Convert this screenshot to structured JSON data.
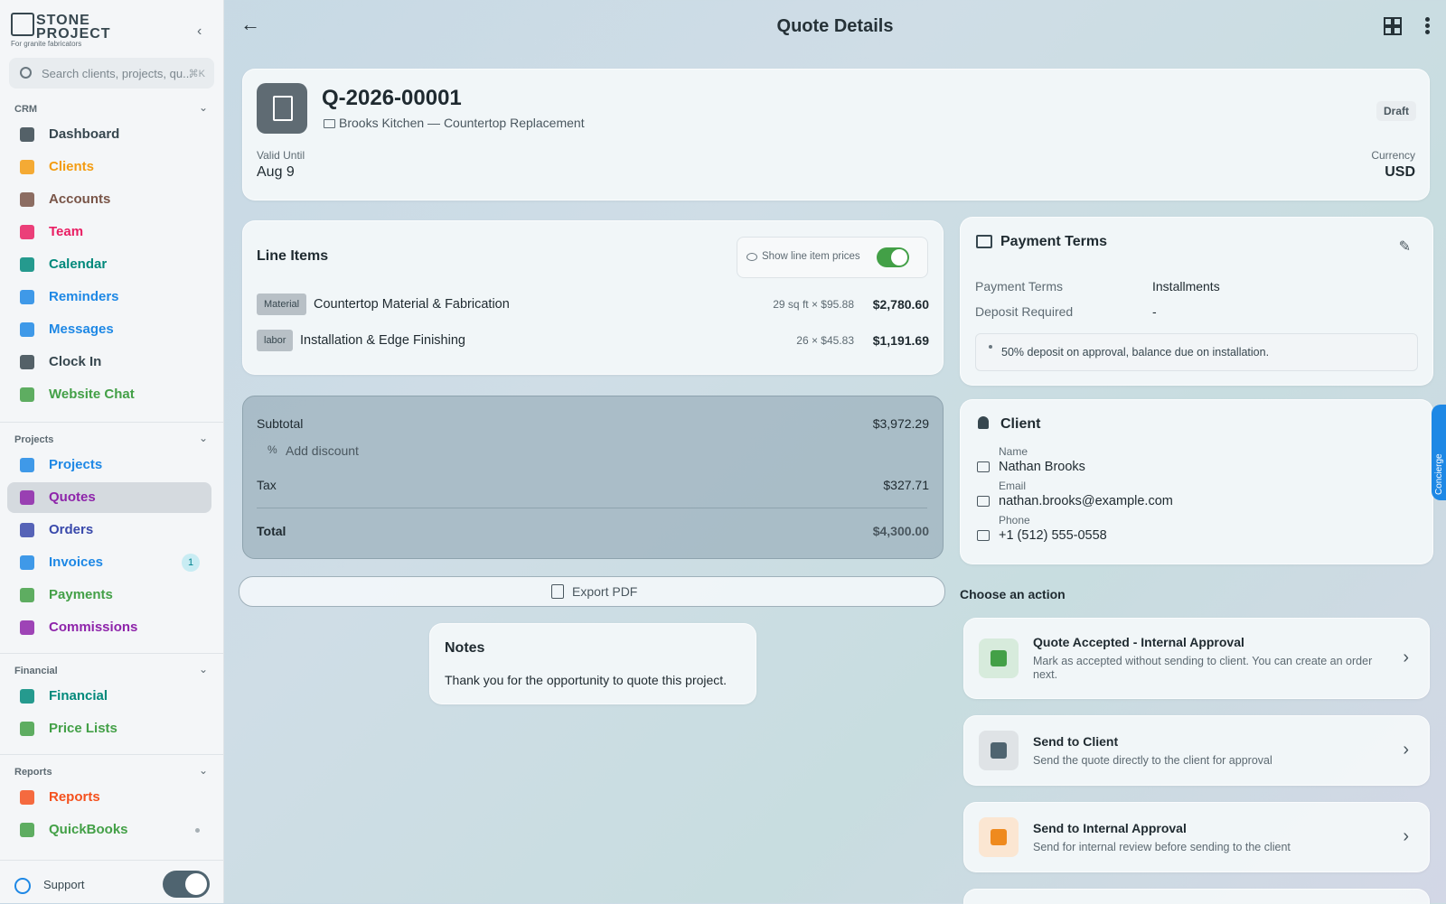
{
  "sidebar": {
    "logo": {
      "line1": "STONE",
      "line2": "PROJECT",
      "tagline": "For granite fabricators"
    },
    "search_placeholder": "Search clients, projects, qu...",
    "search_shortcut": "⌘K",
    "sections": [
      {
        "title": "CRM",
        "items": [
          {
            "label": "Dashboard"
          },
          {
            "label": "Clients"
          },
          {
            "label": "Accounts"
          },
          {
            "label": "Team"
          },
          {
            "label": "Calendar"
          },
          {
            "label": "Reminders"
          },
          {
            "label": "Messages"
          },
          {
            "label": "Clock In"
          },
          {
            "label": "Website Chat"
          }
        ]
      },
      {
        "title": "Projects",
        "items": [
          {
            "label": "Projects"
          },
          {
            "label": "Quotes"
          },
          {
            "label": "Orders"
          },
          {
            "label": "Invoices",
            "badge": 1
          },
          {
            "label": "Payments"
          },
          {
            "label": "Commissions"
          }
        ]
      },
      {
        "title": "Financial",
        "items": [
          {
            "label": "Financial"
          },
          {
            "label": "Price Lists"
          }
        ]
      },
      {
        "title": "Reports",
        "items": [
          {
            "label": "Reports"
          },
          {
            "label": "QuickBooks"
          }
        ]
      }
    ],
    "support": "Support"
  },
  "header": {
    "title": "Quote Details"
  },
  "quote": {
    "number": "Q-2026-00001",
    "project": "Brooks Kitchen — Countertop Replacement",
    "status": "Draft",
    "valid_until_label": "Valid Until",
    "valid_until": "Aug 9",
    "currency_label": "Currency",
    "currency": "USD"
  },
  "line_items": {
    "title": "Line Items",
    "toggle_label": "Show line item prices",
    "items": [
      {
        "category": "Material",
        "name": "Countertop Material & Fabrication",
        "qty": "29 sq ft × $95.88",
        "amount": "$2,780.60"
      },
      {
        "category": "labor",
        "name": "Installation & Edge Finishing",
        "qty": "26 × $45.83",
        "amount": "$1,191.69"
      }
    ]
  },
  "totals": {
    "subtotal_label": "Subtotal",
    "subtotal": "$3,972.29",
    "discount": "Add discount",
    "tax_label": "Tax",
    "tax": "$327.71",
    "total_label": "Total",
    "total": "$4,300.00"
  },
  "export": "Export PDF",
  "notes": {
    "title": "Notes",
    "text": "Thank you for the opportunity to quote this project."
  },
  "payment_terms": {
    "title": "Payment Terms",
    "rows": [
      {
        "label": "Payment Terms",
        "value": "Installments"
      },
      {
        "label": "Deposit Required",
        "value": "-"
      }
    ],
    "note": "50% deposit on approval, balance due on installation."
  },
  "client": {
    "title": "Client",
    "fields": [
      {
        "label": "Name",
        "value": "Nathan Brooks"
      },
      {
        "label": "Email",
        "value": "nathan.brooks@example.com"
      },
      {
        "label": "Phone",
        "value": "+1 (512) 555-0558"
      }
    ]
  },
  "actions": {
    "title": "Choose an action",
    "items": [
      {
        "title": "Quote Accepted - Internal Approval",
        "description": "Mark as accepted without sending to client. You can create an order next."
      },
      {
        "title": "Send to Client",
        "description": "Send the quote directly to the client for approval"
      },
      {
        "title": "Send to Internal Approval",
        "description": "Send for internal review before sending to the client"
      }
    ]
  },
  "concierge": "Concierge"
}
